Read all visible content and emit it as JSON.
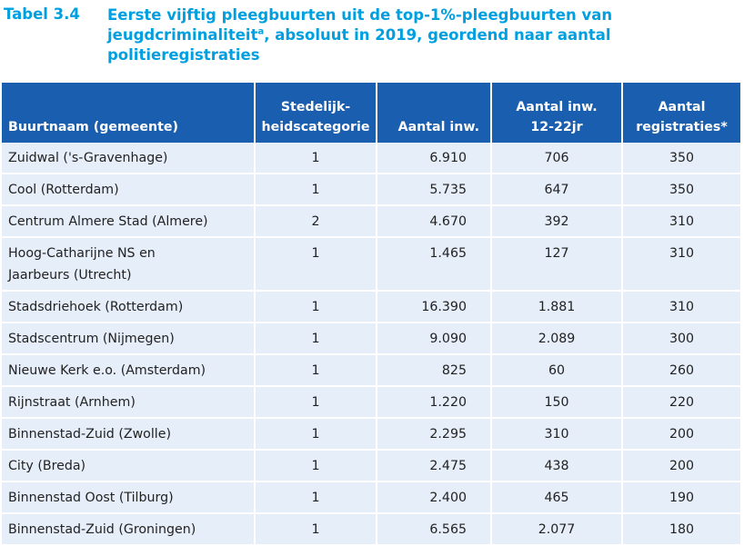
{
  "caption": {
    "label": "Tabel 3.4",
    "text_before_sup": "Eerste vijftig pleegbuurten uit de top-1%-pleegbuurten van jeugdcriminaliteit",
    "sup": "a",
    "text_after_sup": ", absoluut in 2019, geordend naar aantal politieregistraties"
  },
  "columns": [
    {
      "line1": "",
      "line2": "Buurtnaam (gemeente)"
    },
    {
      "line1": "Stedelijk-",
      "line2": "heidscategorie"
    },
    {
      "line1": "",
      "line2": "Aantal inw."
    },
    {
      "line1": "Aantal inw.",
      "line2": "12-22jr"
    },
    {
      "line1": "Aantal",
      "line2": "registraties*"
    }
  ],
  "rows": [
    {
      "name": "Zuidwal ('s-Gravenhage)",
      "cat": "1",
      "inw": "6.910",
      "inw1222": "706",
      "reg": "350"
    },
    {
      "name": "Cool (Rotterdam)",
      "cat": "1",
      "inw": "5.735",
      "inw1222": "647",
      "reg": "350"
    },
    {
      "name": "Centrum Almere Stad (Almere)",
      "cat": "2",
      "inw": "4.670",
      "inw1222": "392",
      "reg": "310"
    },
    {
      "name": "Hoog-Catharijne NS en Jaarbeurs (Utrecht)",
      "name_line1": "Hoog-Catharijne NS en",
      "name_line2": "Jaarbeurs (Utrecht)",
      "cat": "1",
      "inw": "1.465",
      "inw1222": "127",
      "reg": "310"
    },
    {
      "name": "Stadsdriehoek (Rotterdam)",
      "cat": "1",
      "inw": "16.390",
      "inw1222": "1.881",
      "reg": "310"
    },
    {
      "name": "Stadscentrum (Nijmegen)",
      "cat": "1",
      "inw": "9.090",
      "inw1222": "2.089",
      "reg": "300"
    },
    {
      "name": "Nieuwe Kerk e.o. (Amsterdam)",
      "cat": "1",
      "inw": "825",
      "inw1222": "60",
      "reg": "260"
    },
    {
      "name": "Rijnstraat (Arnhem)",
      "cat": "1",
      "inw": "1.220",
      "inw1222": "150",
      "reg": "220"
    },
    {
      "name": "Binnenstad-Zuid (Zwolle)",
      "cat": "1",
      "inw": "2.295",
      "inw1222": "310",
      "reg": "200"
    },
    {
      "name": "City (Breda)",
      "cat": "1",
      "inw": "2.475",
      "inw1222": "438",
      "reg": "200"
    },
    {
      "name": "Binnenstad Oost (Tilburg)",
      "cat": "1",
      "inw": "2.400",
      "inw1222": "465",
      "reg": "190"
    },
    {
      "name": "Binnenstad-Zuid (Groningen)",
      "cat": "1",
      "inw": "6.565",
      "inw1222": "2.077",
      "reg": "180"
    }
  ],
  "colors": {
    "accent": "#00a0e0",
    "header_bg": "#1a5faf",
    "row_bg": "#e6eef9"
  }
}
